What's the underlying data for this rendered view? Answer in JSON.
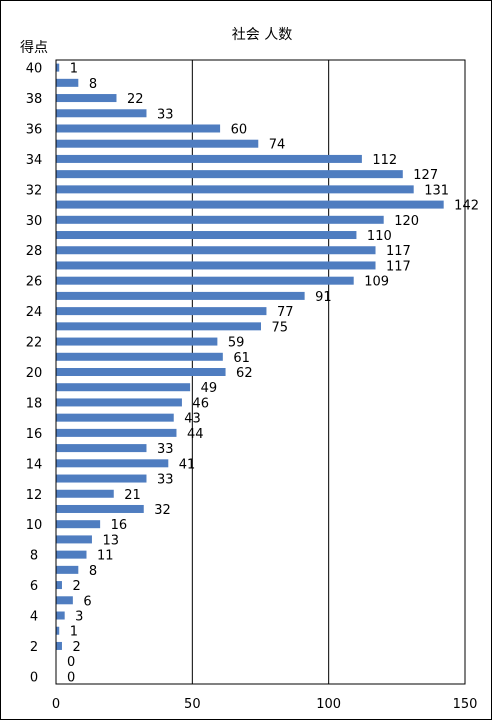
{
  "chart_data": {
    "type": "bar",
    "orientation": "horizontal",
    "title": "社会 人数",
    "ylabel": "得点",
    "xlabel": "",
    "xlim": [
      0,
      150
    ],
    "x_ticks": [
      0,
      50,
      100,
      150
    ],
    "y_ticks": [
      40,
      38,
      36,
      34,
      32,
      30,
      28,
      26,
      24,
      22,
      20,
      18,
      16,
      14,
      12,
      10,
      8,
      6,
      4,
      2,
      0
    ],
    "grid": "vertical",
    "bar_color": "#4F7DC0",
    "categories": [
      40,
      39,
      38,
      37,
      36,
      35,
      34,
      33,
      32,
      31,
      30,
      29,
      28,
      27,
      26,
      25,
      24,
      23,
      22,
      21,
      20,
      19,
      18,
      17,
      16,
      15,
      14,
      13,
      12,
      11,
      10,
      9,
      8,
      7,
      6,
      5,
      4,
      3,
      2,
      1,
      0
    ],
    "values": [
      1,
      8,
      22,
      33,
      60,
      74,
      112,
      127,
      131,
      142,
      120,
      110,
      117,
      117,
      109,
      91,
      77,
      75,
      59,
      61,
      62,
      49,
      46,
      43,
      44,
      33,
      41,
      33,
      21,
      32,
      16,
      13,
      11,
      8,
      2,
      6,
      3,
      1,
      2,
      0,
      0
    ]
  }
}
